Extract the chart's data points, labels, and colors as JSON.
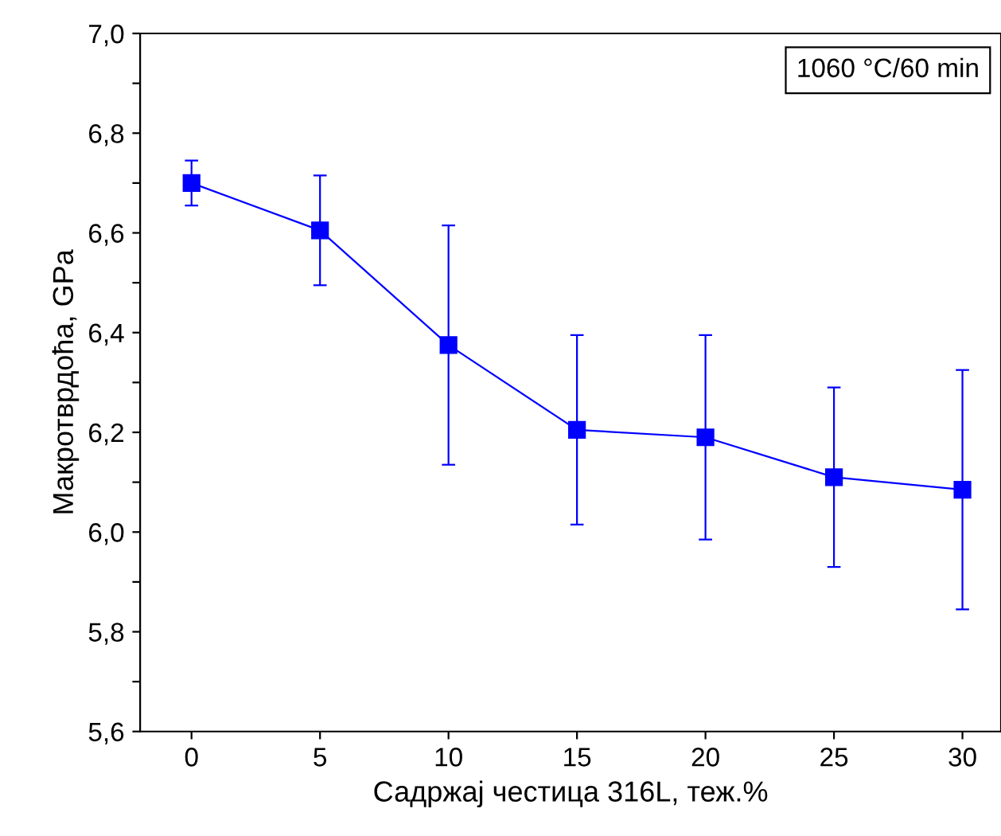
{
  "chart_data": {
    "type": "line",
    "xlabel": "Садржај честица 316L, теж.%",
    "ylabel": "Макротврдоћа, GPa",
    "annotations": [
      "1060 °C/60 min"
    ],
    "x": [
      0,
      5,
      10,
      15,
      20,
      25,
      30
    ],
    "series": [
      {
        "color": "#0000ff",
        "values": [
          6.7,
          6.605,
          6.375,
          6.205,
          6.19,
          6.11,
          6.085
        ],
        "errors": [
          0.045,
          0.11,
          0.24,
          0.19,
          0.205,
          0.18,
          0.24
        ]
      }
    ],
    "marker": "square",
    "line_style": "solid",
    "xlim": [
      -2,
      31.5
    ],
    "xticks": [
      0,
      5,
      10,
      15,
      20,
      25,
      30
    ],
    "ylim": [
      5.6,
      7.0
    ],
    "yticks": [
      {
        "value": 5.6,
        "label": "5,6"
      },
      {
        "value": 5.7,
        "label": null
      },
      {
        "value": 5.8,
        "label": "5,8"
      },
      {
        "value": 5.9,
        "label": null
      },
      {
        "value": 6.0,
        "label": "6,0"
      },
      {
        "value": 6.1,
        "label": null
      },
      {
        "value": 6.2,
        "label": "6,2"
      },
      {
        "value": 6.3,
        "label": null
      },
      {
        "value": 6.4,
        "label": "6,4"
      },
      {
        "value": 6.5,
        "label": null
      },
      {
        "value": 6.6,
        "label": "6,6"
      },
      {
        "value": 6.7,
        "label": null
      },
      {
        "value": 6.8,
        "label": "6,8"
      },
      {
        "value": 6.9,
        "label": null
      },
      {
        "value": 7.0,
        "label": "7,0"
      }
    ],
    "grid": false,
    "legend": false
  }
}
